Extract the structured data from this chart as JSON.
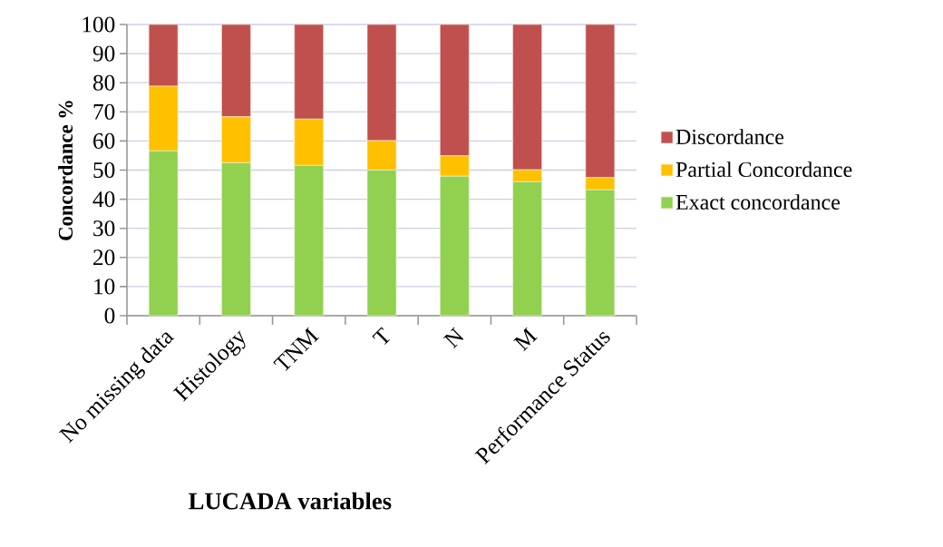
{
  "chart_data": {
    "type": "bar",
    "stacked": true,
    "xlabel": "LUCADA variables",
    "ylabel": "Concordance %",
    "categories": [
      "No missing data",
      "Histology",
      "TNM",
      "T",
      "N",
      "M",
      "Performance Status"
    ],
    "series": [
      {
        "name": "Exact concordance",
        "color": "#92d050",
        "values": [
          56.6,
          52.5,
          51.6,
          50.0,
          47.9,
          46.0,
          43.2
        ]
      },
      {
        "name": "Partial Concordance",
        "color": "#ffc000",
        "values": [
          22.2,
          15.8,
          15.9,
          10.1,
          7.0,
          4.1,
          4.2
        ]
      },
      {
        "name": "Discordance",
        "color": "#c0504d",
        "values": [
          21.2,
          31.7,
          32.5,
          39.9,
          45.1,
          49.9,
          52.6
        ]
      }
    ],
    "ylim": [
      0,
      100
    ],
    "yticks": [
      0,
      10,
      20,
      30,
      40,
      50,
      60,
      70,
      80,
      90,
      100
    ],
    "grid": "y",
    "legend": "right"
  }
}
